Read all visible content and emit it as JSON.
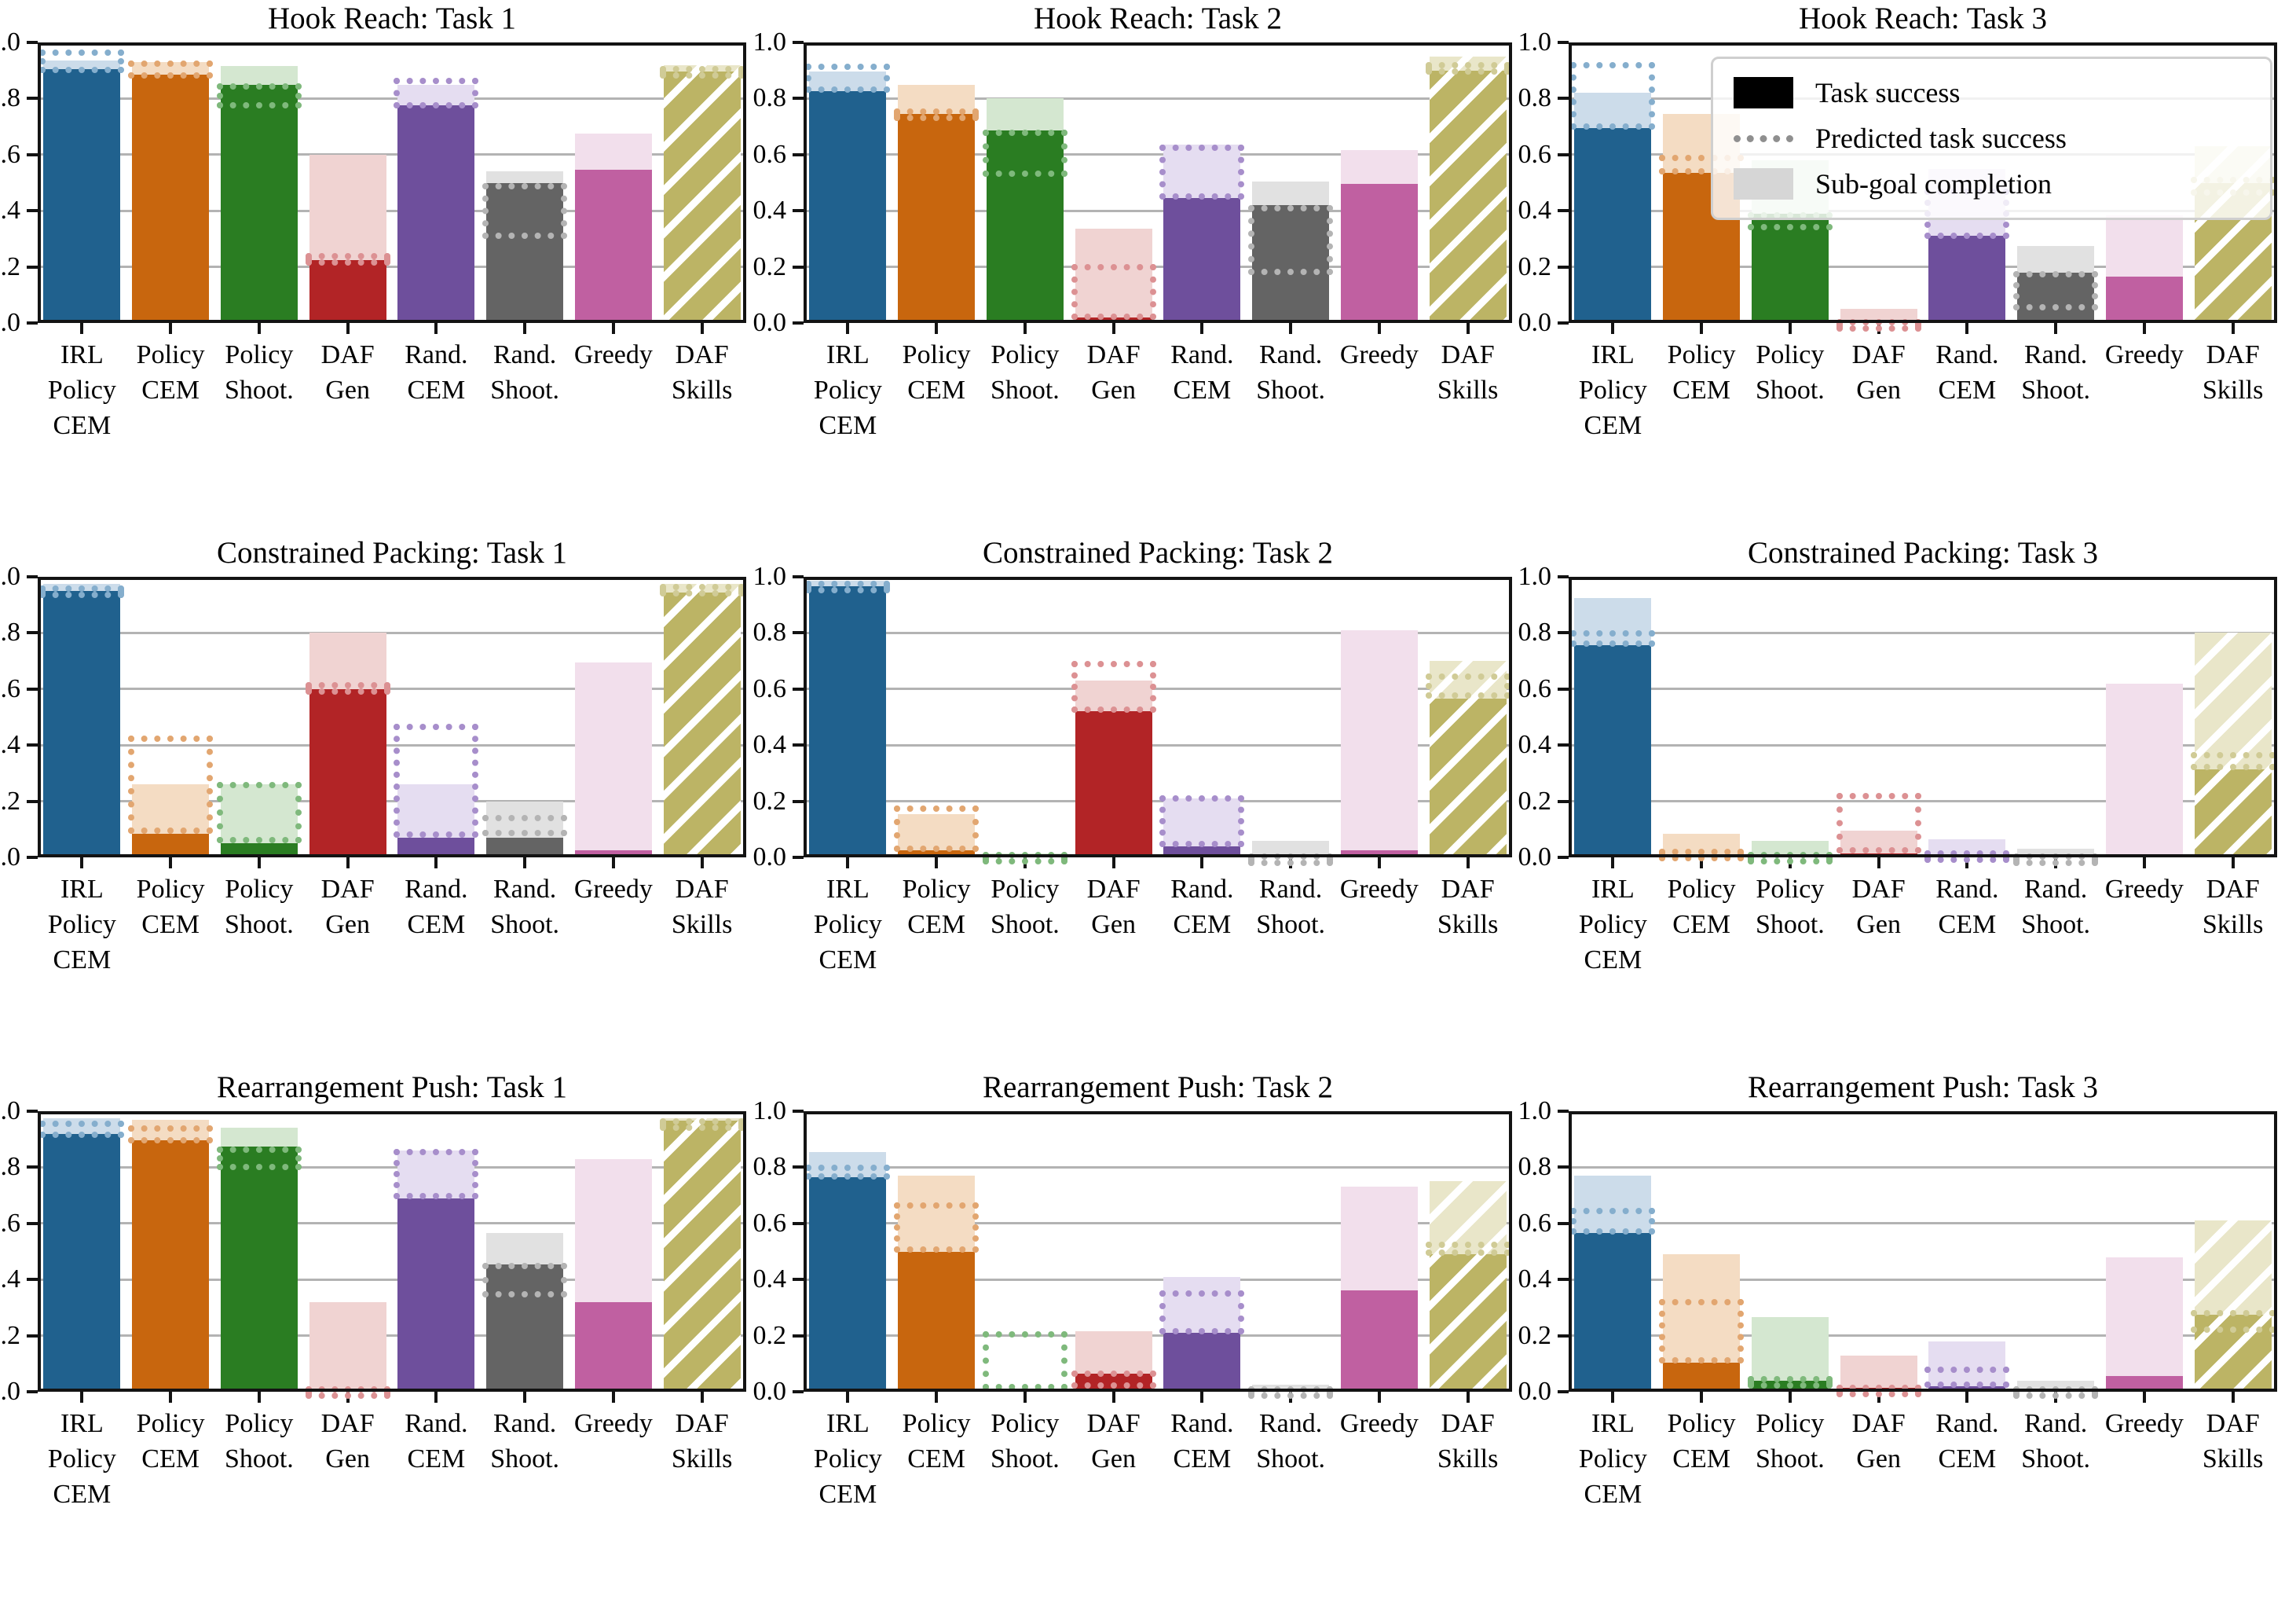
{
  "style": {
    "background": "#ffffff",
    "grid_color": "#b3b3b3",
    "spine_color": "#131313",
    "legend_border": "#cfcfcf",
    "legend_background": "rgba(255,255,255,0.82)"
  },
  "axes": {
    "y_tick_labels": [
      "0.0",
      "0.2",
      "0.4",
      "0.6",
      "0.8",
      "1.0"
    ],
    "y_min": 0.0,
    "y_max": 1.0,
    "grid": true
  },
  "methods": [
    {
      "name": "IRL Policy CEM",
      "label_lines": [
        "IRL",
        "Policy",
        "CEM"
      ],
      "solid": "#20618e",
      "light": "#ccdcea",
      "dot": "#85aecd",
      "hatch": false
    },
    {
      "name": "Policy CEM",
      "label_lines": [
        "Policy",
        "CEM"
      ],
      "solid": "#c8660e",
      "light": "#f4dcc3",
      "dot": "#e2a670",
      "hatch": false
    },
    {
      "name": "Policy Shoot.",
      "label_lines": [
        "Policy",
        "Shoot."
      ],
      "solid": "#2a7d22",
      "light": "#d4e7d0",
      "dot": "#7fb97c",
      "hatch": false
    },
    {
      "name": "DAF Gen",
      "label_lines": [
        "DAF",
        "Gen"
      ],
      "solid": "#b22426",
      "light": "#f0d3d2",
      "dot": "#dc9193",
      "hatch": false
    },
    {
      "name": "Rand. CEM",
      "label_lines": [
        "Rand.",
        "CEM"
      ],
      "solid": "#6e4f9c",
      "light": "#e5ddf1",
      "dot": "#a78ecb",
      "hatch": false
    },
    {
      "name": "Rand. Shoot.",
      "label_lines": [
        "Rand.",
        "Shoot."
      ],
      "solid": "#646464",
      "light": "#e1e1e1",
      "dot": "#b4b4b4",
      "hatch": false
    },
    {
      "name": "Greedy",
      "label_lines": [
        "Greedy"
      ],
      "solid": "#c060a1",
      "light": "#f2dfec",
      "dot": "#daa6cb",
      "hatch": false
    },
    {
      "name": "DAF Skills",
      "label_lines": [
        "DAF",
        "Skills"
      ],
      "solid": "#bcb465",
      "light": "#e9e6c9",
      "dot": "#d0cb96",
      "hatch": true
    }
  ],
  "legend": {
    "items": [
      {
        "label": "Task success",
        "swatch": "solid-black"
      },
      {
        "label": "Predicted task success",
        "swatch": "dotted-gray"
      },
      {
        "label": "Sub-goal completion",
        "swatch": "light-gray"
      }
    ],
    "position": "top-right of subplot: Hook Reach: Task 3"
  },
  "chart_data": [
    {
      "type": "bar",
      "title": "Hook Reach: Task 1",
      "ylim": [
        0,
        1
      ],
      "grid": true,
      "categories": [
        "IRL Policy CEM",
        "Policy CEM",
        "Policy Shoot.",
        "DAF Gen",
        "Rand. CEM",
        "Rand. Shoot.",
        "Greedy",
        "DAF Skills"
      ],
      "series": [
        {
          "name": "Task success",
          "values": [
            0.905,
            0.885,
            0.85,
            0.225,
            0.775,
            0.5,
            0.545,
            0.895
          ]
        },
        {
          "name": "Predicted task success",
          "ranges": [
            [
              0.89,
              0.975
            ],
            [
              0.87,
              0.935
            ],
            [
              0.765,
              0.855
            ],
            [
              0.21,
              0.25
            ],
            [
              0.765,
              0.875
            ],
            [
              0.3,
              0.5
            ],
            null,
            [
              0.88,
              0.915
            ]
          ]
        },
        {
          "name": "Sub-goal completion",
          "values": [
            0.935,
            0.93,
            0.915,
            0.6,
            0.85,
            0.54,
            0.675,
            0.92
          ]
        }
      ]
    },
    {
      "type": "bar",
      "title": "Hook Reach: Task 2",
      "ylim": [
        0,
        1
      ],
      "grid": true,
      "categories": [
        "IRL Policy CEM",
        "Policy CEM",
        "Policy Shoot.",
        "DAF Gen",
        "Rand. CEM",
        "Rand. Shoot.",
        "Greedy",
        "DAF Skills"
      ],
      "series": [
        {
          "name": "Task success",
          "values": [
            0.825,
            0.745,
            0.685,
            0.02,
            0.445,
            0.42,
            0.495,
            0.9
          ]
        },
        {
          "name": "Predicted task success",
          "ranges": [
            [
              0.82,
              0.925
            ],
            [
              0.72,
              0.765
            ],
            [
              0.52,
              0.69
            ],
            [
              0.01,
              0.21
            ],
            [
              0.44,
              0.635
            ],
            [
              0.17,
              0.42
            ],
            null,
            [
              0.885,
              0.93
            ]
          ]
        },
        {
          "name": "Sub-goal completion",
          "values": [
            0.895,
            0.85,
            0.8,
            0.335,
            0.635,
            0.505,
            0.615,
            0.95
          ]
        }
      ]
    },
    {
      "type": "bar",
      "title": "Hook Reach: Task 3",
      "ylim": [
        0,
        1
      ],
      "grid": true,
      "categories": [
        "IRL Policy CEM",
        "Policy CEM",
        "Policy Shoot.",
        "DAF Gen",
        "Rand. CEM",
        "Rand. Shoot.",
        "Greedy",
        "DAF Skills"
      ],
      "series": [
        {
          "name": "Task success",
          "values": [
            0.695,
            0.535,
            0.39,
            0.005,
            0.31,
            0.18,
            0.165,
            0.5
          ]
        },
        {
          "name": "Predicted task success",
          "ranges": [
            [
              0.69,
              0.93
            ],
            [
              0.53,
              0.6
            ],
            [
              0.33,
              0.395
            ],
            [
              0.005,
              0.015
            ],
            [
              0.3,
              0.48
            ],
            [
              0.045,
              0.185
            ],
            null,
            [
              0.455,
              0.52
            ]
          ]
        },
        {
          "name": "Sub-goal completion",
          "values": [
            0.82,
            0.745,
            0.58,
            0.05,
            0.55,
            0.275,
            0.385,
            0.63
          ]
        }
      ]
    },
    {
      "type": "bar",
      "title": "Constrained Packing: Task 1",
      "ylim": [
        0,
        1
      ],
      "grid": true,
      "categories": [
        "IRL Policy CEM",
        "Policy CEM",
        "Policy Shoot.",
        "DAF Gen",
        "Rand. CEM",
        "Rand. Shoot.",
        "Greedy",
        "DAF Skills"
      ],
      "series": [
        {
          "name": "Task success",
          "values": [
            0.95,
            0.085,
            0.05,
            0.6,
            0.07,
            0.07,
            0.025,
            0.945
          ]
        },
        {
          "name": "Predicted task success",
          "ranges": [
            [
              0.93,
              0.97
            ],
            [
              0.085,
              0.435
            ],
            [
              0.05,
              0.27
            ],
            [
              0.585,
              0.625
            ],
            [
              0.07,
              0.475
            ],
            [
              0.075,
              0.15
            ],
            null,
            [
              0.935,
              0.975
            ]
          ]
        },
        {
          "name": "Sub-goal completion",
          "values": [
            0.975,
            0.26,
            0.26,
            0.8,
            0.26,
            0.2,
            0.695,
            0.975
          ]
        }
      ]
    },
    {
      "type": "bar",
      "title": "Constrained Packing: Task 2",
      "ylim": [
        0,
        1
      ],
      "grid": true,
      "categories": [
        "IRL Policy CEM",
        "Policy CEM",
        "Policy Shoot.",
        "DAF Gen",
        "Rand. CEM",
        "Rand. Shoot.",
        "Greedy",
        "DAF Skills"
      ],
      "series": [
        {
          "name": "Task success",
          "values": [
            0.965,
            0.025,
            0.01,
            0.52,
            0.04,
            0.005,
            0.025,
            0.565
          ]
        },
        {
          "name": "Predicted task success",
          "ranges": [
            [
              0.95,
              0.985
            ],
            [
              0.02,
              0.185
            ],
            [
              0.005,
              0.02
            ],
            [
              0.515,
              0.7
            ],
            [
              0.035,
              0.22
            ],
            [
              0.003,
              0.015
            ],
            null,
            [
              0.565,
              0.655
            ]
          ]
        },
        {
          "name": "Sub-goal completion",
          "values": [
            0.985,
            0.155,
            0.015,
            0.63,
            0.21,
            0.06,
            0.81,
            0.7
          ]
        }
      ]
    },
    {
      "type": "bar",
      "title": "Constrained Packing: Task 3",
      "ylim": [
        0,
        1
      ],
      "grid": true,
      "categories": [
        "IRL Policy CEM",
        "Policy CEM",
        "Policy Shoot.",
        "DAF Gen",
        "Rand. CEM",
        "Rand. Shoot.",
        "Greedy",
        "DAF Skills"
      ],
      "series": [
        {
          "name": "Task success",
          "values": [
            0.755,
            0.01,
            0.008,
            0.015,
            0.008,
            0.005,
            0.005,
            0.315
          ]
        },
        {
          "name": "Predicted task success",
          "ranges": [
            [
              0.75,
              0.81
            ],
            [
              0.008,
              0.03
            ],
            [
              0.005,
              0.02
            ],
            [
              0.015,
              0.23
            ],
            [
              0.005,
              0.025
            ],
            [
              0.004,
              0.015
            ],
            null,
            [
              0.31,
              0.375
            ]
          ]
        },
        {
          "name": "Sub-goal completion",
          "values": [
            0.925,
            0.085,
            0.06,
            0.095,
            0.065,
            0.03,
            0.62,
            0.8
          ]
        }
      ]
    },
    {
      "type": "bar",
      "title": "Rearrangement Push: Task 1",
      "ylim": [
        0,
        1
      ],
      "grid": true,
      "categories": [
        "IRL Policy CEM",
        "Policy CEM",
        "Policy Shoot.",
        "DAF Gen",
        "Rand. CEM",
        "Rand. Shoot.",
        "Greedy",
        "DAF Skills"
      ],
      "series": [
        {
          "name": "Task success",
          "values": [
            0.92,
            0.895,
            0.875,
            0.01,
            0.69,
            0.455,
            0.32,
            0.965
          ]
        },
        {
          "name": "Predicted task success",
          "ranges": [
            [
              0.905,
              0.965
            ],
            [
              0.885,
              0.95
            ],
            [
              0.79,
              0.875
            ],
            [
              0.005,
              0.02
            ],
            [
              0.685,
              0.865
            ],
            [
              0.335,
              0.46
            ],
            null,
            [
              0.95,
              0.975
            ]
          ]
        },
        {
          "name": "Sub-goal completion",
          "values": [
            0.975,
            0.97,
            0.94,
            0.32,
            0.86,
            0.565,
            0.83,
            0.975
          ]
        }
      ]
    },
    {
      "type": "bar",
      "title": "Rearrangement Push: Task 2",
      "ylim": [
        0,
        1
      ],
      "grid": true,
      "categories": [
        "IRL Policy CEM",
        "Policy CEM",
        "Policy Shoot.",
        "DAF Gen",
        "Rand. CEM",
        "Rand. Shoot.",
        "Greedy",
        "DAF Skills"
      ],
      "series": [
        {
          "name": "Task success",
          "values": [
            0.765,
            0.5,
            0.005,
            0.065,
            0.21,
            0.01,
            0.36,
            0.49
          ]
        },
        {
          "name": "Predicted task success",
          "ranges": [
            [
              0.755,
              0.81
            ],
            [
              0.495,
              0.675
            ],
            [
              0.005,
              0.215
            ],
            [
              0.01,
              0.075
            ],
            [
              0.205,
              0.36
            ],
            [
              0.005,
              0.02
            ],
            null,
            [
              0.485,
              0.535
            ]
          ]
        },
        {
          "name": "Sub-goal completion",
          "values": [
            0.855,
            0.77,
            0.01,
            0.215,
            0.41,
            0.025,
            0.73,
            0.75
          ]
        }
      ]
    },
    {
      "type": "bar",
      "title": "Rearrangement Push: Task 3",
      "ylim": [
        0,
        1
      ],
      "grid": true,
      "categories": [
        "IRL Policy CEM",
        "Policy CEM",
        "Policy Shoot.",
        "DAF Gen",
        "Rand. CEM",
        "Rand. Shoot.",
        "Greedy",
        "DAF Skills"
      ],
      "series": [
        {
          "name": "Task success",
          "values": [
            0.565,
            0.105,
            0.04,
            0.015,
            0.02,
            0.008,
            0.055,
            0.275
          ]
        },
        {
          "name": "Predicted task success",
          "ranges": [
            [
              0.56,
              0.655
            ],
            [
              0.1,
              0.33
            ],
            [
              0.03,
              0.055
            ],
            [
              0.008,
              0.025
            ],
            [
              0.015,
              0.09
            ],
            [
              0.005,
              0.02
            ],
            null,
            [
              0.21,
              0.29
            ]
          ]
        },
        {
          "name": "Sub-goal completion",
          "values": [
            0.77,
            0.49,
            0.265,
            0.13,
            0.18,
            0.04,
            0.48,
            0.61
          ]
        }
      ]
    }
  ]
}
